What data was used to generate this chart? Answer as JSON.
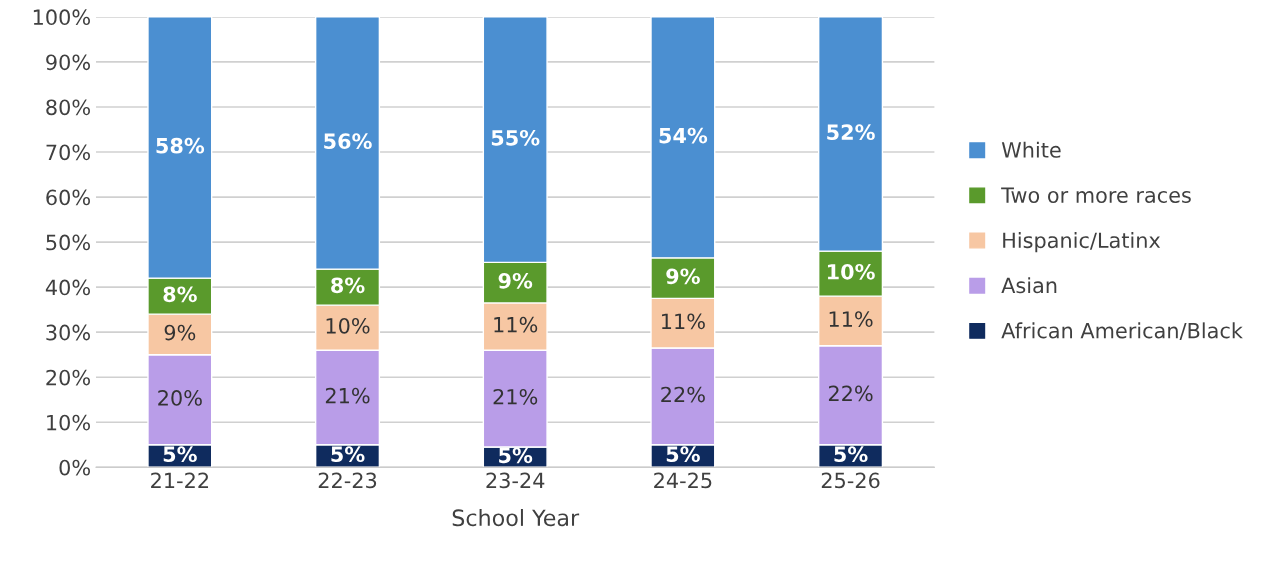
{
  "chart_data": {
    "type": "bar",
    "stacked": true,
    "xlabel": "School Year",
    "categories": [
      "21-22",
      "22-23",
      "23-24",
      "24-25",
      "25-26"
    ],
    "series": [
      {
        "name": "African American/Black",
        "color": "#0f2b5e",
        "values": [
          5,
          5,
          4.5,
          5,
          5
        ],
        "value_labels": [
          "5%",
          "5%",
          "5%",
          "5%",
          "5%"
        ]
      },
      {
        "name": "Asian",
        "color": "#b99de8",
        "values": [
          20,
          21,
          21.5,
          21.5,
          22
        ],
        "value_labels": [
          "20%",
          "21%",
          "21%",
          "22%",
          "22%"
        ]
      },
      {
        "name": "Hispanic/Latinx",
        "color": "#f7c7a3",
        "values": [
          9,
          10,
          10.5,
          11,
          11
        ],
        "value_labels": [
          "9%",
          "10%",
          "11%",
          "11%",
          "11%"
        ]
      },
      {
        "name": "Two or more races",
        "color": "#5a9a2c",
        "values": [
          8,
          8,
          9,
          9,
          10
        ],
        "value_labels": [
          "8%",
          "8%",
          "9%",
          "9%",
          "10%"
        ]
      },
      {
        "name": "White",
        "color": "#4b8fd1",
        "values": [
          58,
          56,
          54.5,
          53.5,
          52
        ],
        "value_labels": [
          "58%",
          "56%",
          "55%",
          "54%",
          "52%"
        ]
      }
    ],
    "ylim": [
      0,
      100
    ],
    "yticks": [
      {
        "value": 0,
        "label": "0%"
      },
      {
        "value": 10,
        "label": "10%"
      },
      {
        "value": 20,
        "label": "20%"
      },
      {
        "value": 30,
        "label": "30%"
      },
      {
        "value": 40,
        "label": "40%"
      },
      {
        "value": 50,
        "label": "50%"
      },
      {
        "value": 60,
        "label": "60%"
      },
      {
        "value": 70,
        "label": "70%"
      },
      {
        "value": 80,
        "label": "80%"
      },
      {
        "value": 90,
        "label": "90%"
      },
      {
        "value": 100,
        "label": "100%"
      }
    ],
    "grid": "y",
    "legend": "right"
  }
}
